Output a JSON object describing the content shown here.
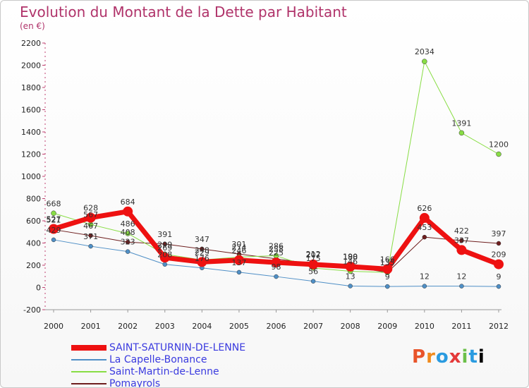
{
  "title": "Evolution du Montant de la Dette par Habitant",
  "subtitle": "(en €)",
  "logo": [
    "P",
    "r",
    "o",
    "x",
    "i",
    "t",
    "i"
  ],
  "chart_data": {
    "type": "line",
    "x": [
      "2000",
      "2001",
      "2002",
      "2003",
      "2004",
      "2005",
      "2006",
      "2007",
      "2008",
      "2009",
      "2010",
      "2011",
      "2012"
    ],
    "ylim": [
      -200,
      2200
    ],
    "yticks": [
      "-200",
      "0",
      "200",
      "400",
      "600",
      "800",
      "1000",
      "1200",
      "1400",
      "1600",
      "1800",
      "2000",
      "2200"
    ],
    "grid": false,
    "legend_position": "bottom-left",
    "series": [
      {
        "name": "SAINT-SATURNIN-DE-LENNE",
        "color": "#ee1111",
        "width": 7,
        "marker": 7,
        "values": [
          527,
          628,
          684,
          269,
          229,
          246,
          225,
          207,
          188,
          166,
          626,
          337,
          209
        ]
      },
      {
        "name": "La Capelle-Bonance",
        "color": "#4f8fc6",
        "width": 1,
        "marker": 3,
        "values": [
          429,
          371,
          323,
          208,
          176,
          137,
          98,
          56,
          13,
          9,
          12,
          12,
          9
        ]
      },
      {
        "name": "Saint-Martin-de-Lenne",
        "color": "#88dd44",
        "width": 1,
        "marker": 3.5,
        "values": [
          668,
          567,
          486,
          299,
          248,
          274,
          286,
          175,
          146,
          135,
          2034,
          1391,
          1200
        ]
      },
      {
        "name": "Pomayrols",
        "color": "#6e1e1e",
        "width": 1,
        "marker": 3,
        "values": [
          521,
          467,
          408,
          391,
          347,
          301,
          258,
          212,
          190,
          135,
          453,
          422,
          397
        ]
      }
    ],
    "labels": [
      [
        "527",
        "628",
        "684",
        "269",
        "229",
        "246",
        "225",
        "207",
        "188",
        "166",
        "626",
        "337",
        "209"
      ],
      [
        "429",
        "371",
        "323",
        "208",
        "176",
        "137",
        "98",
        "56",
        "13",
        "9",
        "12",
        "12",
        "9"
      ],
      [
        "668",
        "567",
        "486",
        "299",
        "248",
        "274",
        "286",
        "175",
        "146",
        "135",
        "2034",
        "1391",
        "1200"
      ],
      [
        "521",
        "467",
        "408",
        "391",
        "347",
        "301",
        "258",
        "212",
        "190",
        "135",
        "453",
        "422",
        "397"
      ]
    ]
  }
}
